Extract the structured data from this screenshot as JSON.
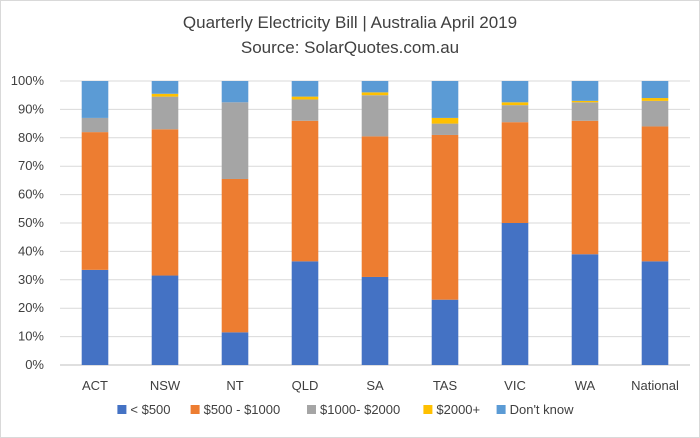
{
  "chart_data": {
    "type": "bar",
    "stacked": true,
    "title": "Quarterly Electricity Bill | Australia April 2019",
    "subtitle": "Source: SolarQuotes.com.au",
    "xlabel": "",
    "ylabel": "",
    "ylim": [
      0,
      100
    ],
    "yticks": [
      "0%",
      "10%",
      "20%",
      "30%",
      "40%",
      "50%",
      "60%",
      "70%",
      "80%",
      "90%",
      "100%"
    ],
    "grid": true,
    "legend_position": "bottom",
    "categories": [
      "ACT",
      "NSW",
      "NT",
      "QLD",
      "SA",
      "TAS",
      "VIC",
      "WA",
      "National"
    ],
    "series": [
      {
        "name": "< $500",
        "color": "#4472c4",
        "values": [
          33.5,
          31.5,
          11.5,
          36.5,
          31,
          23,
          50,
          39,
          36.5
        ]
      },
      {
        "name": "$500 - $1000",
        "color": "#ed7d31",
        "values": [
          48.5,
          51.5,
          54,
          49.5,
          49.5,
          58,
          35.5,
          47,
          47.5
        ]
      },
      {
        "name": "$1000- $2000",
        "color": "#a5a5a5",
        "values": [
          5,
          11.5,
          27,
          7.5,
          14.5,
          4,
          6,
          6.5,
          9
        ]
      },
      {
        "name": "$2000+",
        "color": "#ffc000",
        "values": [
          0,
          1,
          0,
          1,
          1,
          2,
          1,
          0.5,
          1
        ]
      },
      {
        "name": "Don't know",
        "color": "#5b9bd5",
        "values": [
          13,
          4.5,
          7.5,
          5.5,
          4,
          13,
          7.5,
          7,
          6
        ]
      }
    ]
  }
}
